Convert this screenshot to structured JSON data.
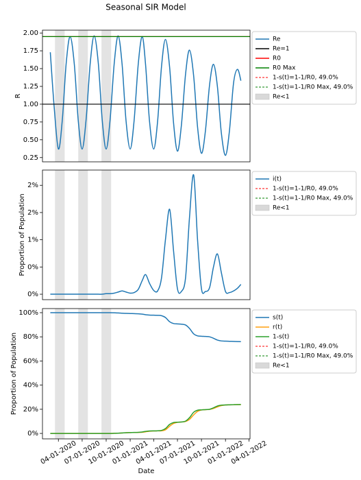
{
  "title": "Seasonal SIR Model",
  "chart_data": [
    {
      "type": "line",
      "ylabel": "R",
      "xlim": [
        "01-31-2020",
        "04-05-2022"
      ],
      "ylim": [
        0.19,
        2.04
      ],
      "yticks": [
        {
          "value": 0.25,
          "label": "0.25"
        },
        {
          "value": 0.5,
          "label": "0.50"
        },
        {
          "value": 0.75,
          "label": "0.75"
        },
        {
          "value": 1,
          "label": "1.00"
        },
        {
          "value": 1.25,
          "label": "1.25"
        },
        {
          "value": 1.5,
          "label": "1.50"
        },
        {
          "value": 1.75,
          "label": "1.75"
        },
        {
          "value": 2,
          "label": "2.00"
        }
      ],
      "x": [
        "03-01-2020",
        "03-16-2020",
        "04-01-2020",
        "04-16-2020",
        "05-01-2020",
        "05-16-2020",
        "06-01-2020",
        "06-16-2020",
        "07-01-2020",
        "07-16-2020",
        "08-01-2020",
        "08-16-2020",
        "09-01-2020",
        "09-16-2020",
        "10-01-2020",
        "10-16-2020",
        "11-01-2020",
        "11-16-2020",
        "12-01-2020",
        "12-16-2020",
        "01-01-2021",
        "01-16-2021",
        "02-01-2021",
        "02-16-2021",
        "03-01-2021",
        "03-16-2021",
        "04-01-2021",
        "04-16-2021",
        "05-01-2021",
        "05-16-2021",
        "06-01-2021",
        "06-16-2021",
        "07-01-2021",
        "07-16-2021",
        "08-01-2021",
        "08-16-2021",
        "09-01-2021",
        "09-16-2021",
        "10-01-2021",
        "10-16-2021",
        "11-01-2021",
        "11-16-2021",
        "12-01-2021",
        "12-16-2021",
        "01-01-2022",
        "01-16-2022",
        "02-01-2022",
        "02-16-2022",
        "03-01-2022"
      ],
      "series": [
        {
          "name": "Re",
          "color": "#1f77b4",
          "values": [
            1.73,
            0.95,
            0.37,
            0.78,
            1.58,
            1.95,
            1.56,
            0.77,
            0.37,
            0.78,
            1.58,
            1.96,
            1.57,
            0.77,
            0.37,
            0.78,
            1.58,
            1.96,
            1.56,
            0.77,
            0.37,
            0.77,
            1.57,
            1.95,
            1.55,
            0.76,
            0.37,
            0.76,
            1.53,
            1.91,
            1.52,
            0.74,
            0.34,
            0.7,
            1.42,
            1.76,
            1.4,
            0.68,
            0.31,
            0.62,
            1.27,
            1.56,
            1.25,
            0.6,
            0.28,
            0.62,
            1.3,
            1.49,
            1.33
          ]
        },
        {
          "name": "Re=1",
          "color": "#000000",
          "hline": 1
        },
        {
          "name": "R0",
          "color": "#ff0000",
          "hline": 1.95
        },
        {
          "name": "R0 Max",
          "color": "#008000",
          "hline": 1.95
        },
        {
          "name": "1-s(t)=1-1/R0, 49.0%",
          "color": "#ff0000",
          "dashed": true
        },
        {
          "name": "1-s(t)=1-1/R0 Max, 49.0%",
          "color": "#008000",
          "dashed": true
        }
      ],
      "spans": {
        "name": "Re<1",
        "color": "#d9d9d9",
        "ranges": [
          [
            "03-19-2020",
            "04-25-2020"
          ],
          [
            "06-16-2020",
            "07-23-2020"
          ],
          [
            "09-13-2020",
            "10-20-2020"
          ]
        ]
      }
    },
    {
      "type": "line",
      "ylabel": "Proportion of Population",
      "xlim": [
        "01-31-2020",
        "04-05-2022"
      ],
      "ylim": [
        -0.1,
        2.28
      ],
      "yticks": [
        {
          "value": 0,
          "label": "0%"
        },
        {
          "value": 0.5,
          "label": "0%"
        },
        {
          "value": 1,
          "label": "1%"
        },
        {
          "value": 1.5,
          "label": "2%"
        },
        {
          "value": 2,
          "label": "2%"
        }
      ],
      "x": [
        "03-01-2020",
        "03-16-2020",
        "04-01-2020",
        "04-16-2020",
        "05-01-2020",
        "05-16-2020",
        "06-01-2020",
        "06-16-2020",
        "07-01-2020",
        "07-16-2020",
        "08-01-2020",
        "08-16-2020",
        "09-01-2020",
        "09-16-2020",
        "10-01-2020",
        "10-16-2020",
        "11-01-2020",
        "11-16-2020",
        "12-01-2020",
        "12-16-2020",
        "01-01-2021",
        "01-16-2021",
        "02-01-2021",
        "02-16-2021",
        "03-01-2021",
        "03-16-2021",
        "04-01-2021",
        "04-16-2021",
        "05-01-2021",
        "05-16-2021",
        "06-01-2021",
        "06-16-2021",
        "07-01-2021",
        "07-16-2021",
        "08-01-2021",
        "08-16-2021",
        "09-01-2021",
        "09-16-2021",
        "10-01-2021",
        "10-16-2021",
        "11-01-2021",
        "11-16-2021",
        "12-01-2021",
        "12-16-2021",
        "01-01-2022",
        "01-16-2022",
        "02-01-2022",
        "02-16-2022",
        "03-01-2022"
      ],
      "series": [
        {
          "name": "i(t)",
          "color": "#1f77b4",
          "values": [
            0,
            0,
            0,
            0,
            0,
            0,
            0,
            0,
            0,
            0,
            0,
            0,
            0,
            0,
            0.01,
            0.01,
            0.02,
            0.04,
            0.06,
            0.04,
            0.02,
            0.03,
            0.09,
            0.25,
            0.36,
            0.2,
            0.07,
            0.06,
            0.3,
            1.0,
            1.56,
            0.8,
            0.1,
            0.05,
            0.3,
            1.4,
            2.19,
            1.0,
            0.1,
            0.05,
            0.12,
            0.5,
            0.74,
            0.4,
            0.05,
            0.03,
            0.06,
            0.11,
            0.18
          ]
        },
        {
          "name": "1-s(t)=1-1/R0, 49.0%",
          "color": "#ff0000",
          "dashed": true
        },
        {
          "name": "1-s(t)=1-1/R0 Max, 49.0%",
          "color": "#008000",
          "dashed": true
        }
      ],
      "spans": {
        "name": "Re<1",
        "color": "#d9d9d9",
        "ranges": [
          [
            "03-19-2020",
            "04-25-2020"
          ],
          [
            "06-16-2020",
            "07-23-2020"
          ],
          [
            "09-13-2020",
            "10-20-2020"
          ]
        ]
      }
    },
    {
      "type": "line",
      "ylabel": "Proportion of Population",
      "xlabel": "Date",
      "xlim": [
        "01-31-2020",
        "04-05-2022"
      ],
      "xticks": [
        "04-01-2020",
        "07-01-2020",
        "10-01-2020",
        "01-01-2021",
        "04-01-2021",
        "07-01-2021",
        "10-01-2021",
        "01-01-2022",
        "04-01-2022"
      ],
      "ylim": [
        -4.5,
        103.4
      ],
      "yticks": [
        {
          "value": 0,
          "label": "0%"
        },
        {
          "value": 20,
          "label": "20%"
        },
        {
          "value": 40,
          "label": "40%"
        },
        {
          "value": 60,
          "label": "60%"
        },
        {
          "value": 80,
          "label": "80%"
        },
        {
          "value": 100,
          "label": "100%"
        }
      ],
      "x": [
        "03-01-2020",
        "03-16-2020",
        "04-01-2020",
        "04-16-2020",
        "05-01-2020",
        "05-16-2020",
        "06-01-2020",
        "06-16-2020",
        "07-01-2020",
        "07-16-2020",
        "08-01-2020",
        "08-16-2020",
        "09-01-2020",
        "09-16-2020",
        "10-01-2020",
        "10-16-2020",
        "11-01-2020",
        "11-16-2020",
        "12-01-2020",
        "12-16-2020",
        "01-01-2021",
        "01-16-2021",
        "02-01-2021",
        "02-16-2021",
        "03-01-2021",
        "03-16-2021",
        "04-01-2021",
        "04-16-2021",
        "05-01-2021",
        "05-16-2021",
        "06-01-2021",
        "06-16-2021",
        "07-01-2021",
        "07-16-2021",
        "08-01-2021",
        "08-16-2021",
        "09-01-2021",
        "09-16-2021",
        "10-01-2021",
        "10-16-2021",
        "11-01-2021",
        "11-16-2021",
        "12-01-2021",
        "12-16-2021",
        "01-01-2022",
        "01-16-2022",
        "02-01-2022",
        "02-16-2022",
        "03-01-2022"
      ],
      "series": [
        {
          "name": "s(t)",
          "color": "#1f77b4",
          "values": [
            100,
            100,
            100,
            100,
            100,
            100,
            100,
            100,
            100,
            100,
            100,
            100,
            100,
            100,
            100,
            100,
            99.9,
            99.8,
            99.6,
            99.4,
            99.3,
            99.2,
            99.1,
            98.8,
            98.3,
            98.0,
            97.9,
            97.8,
            97.5,
            96.0,
            92.5,
            91.0,
            90.7,
            90.5,
            89.8,
            87.0,
            82.5,
            80.8,
            80.5,
            80.3,
            80.0,
            78.8,
            77.3,
            76.6,
            76.4,
            76.3,
            76.2,
            76.1,
            76.0
          ]
        },
        {
          "name": "r(t)",
          "color": "#ff9f0e",
          "values": [
            0,
            0,
            0,
            0,
            0,
            0,
            0,
            0,
            0,
            0,
            0,
            0,
            0,
            0,
            0,
            0,
            0.08,
            0.16,
            0.34,
            0.56,
            0.68,
            0.77,
            0.81,
            0.95,
            1.34,
            1.8,
            2.03,
            2.14,
            2.2,
            3.0,
            5.94,
            8.2,
            9.2,
            9.45,
            9.9,
            11.6,
            15.31,
            18.2,
            19.4,
            19.65,
            19.88,
            20.7,
            21.96,
            23.0,
            23.55,
            23.67,
            23.74,
            23.79,
            23.82
          ]
        },
        {
          "name": "1-s(t)",
          "color": "#2ca02c",
          "values": [
            0,
            0,
            0,
            0,
            0,
            0,
            0,
            0,
            0,
            0,
            0,
            0,
            0,
            0,
            0,
            0,
            0.1,
            0.2,
            0.4,
            0.6,
            0.7,
            0.8,
            0.9,
            1.2,
            1.7,
            2.0,
            2.1,
            2.2,
            2.5,
            4.0,
            7.5,
            9.0,
            9.3,
            9.5,
            10.2,
            13.0,
            17.5,
            19.2,
            19.5,
            19.7,
            20.0,
            21.2,
            22.7,
            23.4,
            23.6,
            23.7,
            23.8,
            23.9,
            24.0
          ]
        },
        {
          "name": "1-s(t)=1-1/R0, 49.0%",
          "color": "#ff0000",
          "dashed": true
        },
        {
          "name": "1-s(t)=1-1/R0 Max, 49.0%",
          "color": "#008000",
          "dashed": true
        }
      ],
      "spans": {
        "name": "Re<1",
        "color": "#d9d9d9",
        "ranges": [
          [
            "03-19-2020",
            "04-25-2020"
          ],
          [
            "06-16-2020",
            "07-23-2020"
          ],
          [
            "09-13-2020",
            "10-20-2020"
          ]
        ]
      }
    }
  ]
}
